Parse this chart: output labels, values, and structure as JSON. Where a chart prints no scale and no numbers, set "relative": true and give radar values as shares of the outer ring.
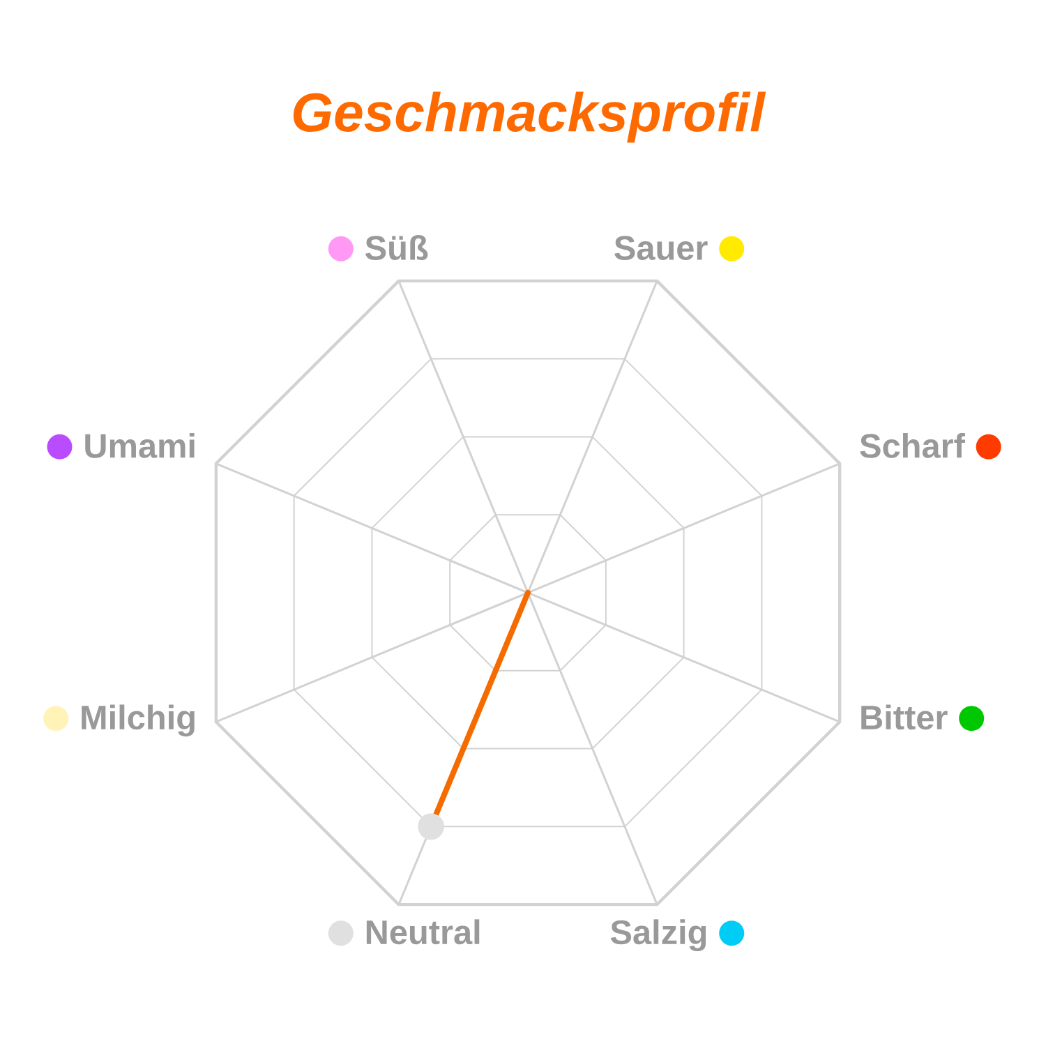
{
  "chart_data": {
    "type": "radar",
    "title": "Geschmacksprofil",
    "categories": [
      "Süß",
      "Sauer",
      "Scharf",
      "Bitter",
      "Salzig",
      "Neutral",
      "Milchig",
      "Umami"
    ],
    "colors": [
      "#ff99f5",
      "#ffea00",
      "#ff3b00",
      "#00c800",
      "#00ccf5",
      "#e0e0e0",
      "#fff3b8",
      "#b94cff"
    ],
    "series": [
      {
        "color": "#f56b00",
        "values": [
          0,
          0,
          0,
          0,
          0,
          0.75,
          0,
          0
        ]
      }
    ],
    "relative": true,
    "grid": true,
    "marker": "circle",
    "line_style": "solid"
  }
}
